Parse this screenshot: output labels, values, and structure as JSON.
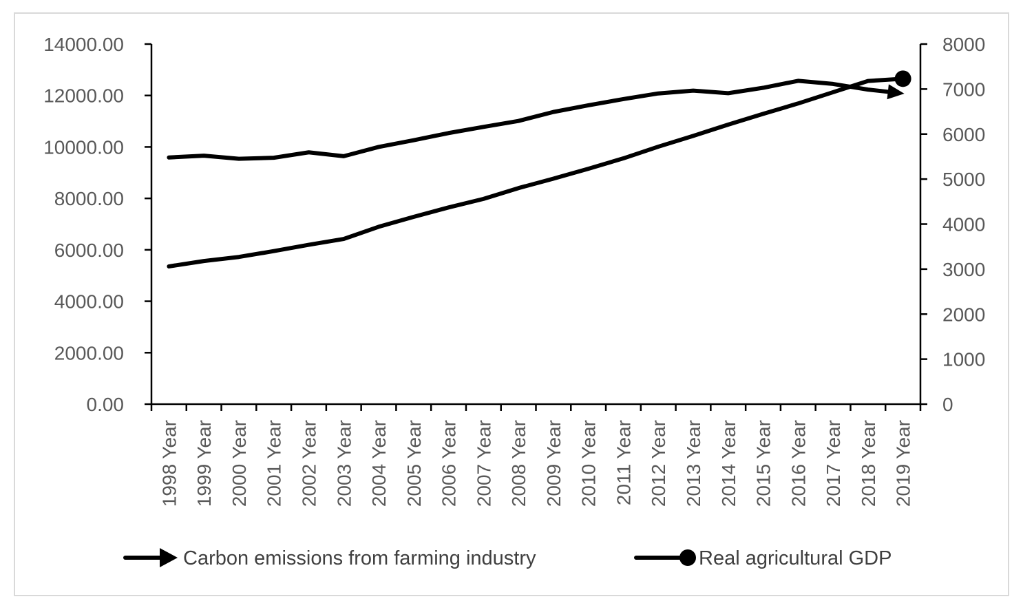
{
  "chart_data": {
    "type": "line",
    "title": "",
    "categories": [
      "1998 Year",
      "1999 Year",
      "2000 Year",
      "2001 Year",
      "2002 Year",
      "2003 Year",
      "2004 Year",
      "2005 Year",
      "2006 Year",
      "2007 Year",
      "2008 Year",
      "2009 Year",
      "2010 Year",
      "2011 Year",
      "2012 Year",
      "2013 Year",
      "2014 Year",
      "2015 Year",
      "2016 Year",
      "2017 Year",
      "2018 Year",
      "2019 Year"
    ],
    "y_left": {
      "min": 0,
      "max": 14000,
      "step": 2000,
      "ticks": [
        "0.00",
        "2000.00",
        "4000.00",
        "6000.00",
        "8000.00",
        "10000.00",
        "12000.00",
        "14000.00"
      ]
    },
    "y_right": {
      "min": 0,
      "max": 8000,
      "step": 1000,
      "ticks": [
        "0",
        "1000",
        "2000",
        "3000",
        "4000",
        "5000",
        "6000",
        "7000",
        "8000"
      ]
    },
    "series": [
      {
        "name": "Carbon emissions from farming industry",
        "axis": "left",
        "marker": "arrow",
        "values": [
          9590,
          9660,
          9540,
          9580,
          9790,
          9640,
          10000,
          10260,
          10540,
          10780,
          11010,
          11360,
          11620,
          11860,
          12080,
          12190,
          12090,
          12300,
          12570,
          12450,
          12230,
          12080
        ]
      },
      {
        "name": "Real agricultural GDP",
        "axis": "right",
        "marker": "circle",
        "values": [
          3060,
          3180,
          3270,
          3400,
          3540,
          3670,
          3940,
          4160,
          4370,
          4560,
          4800,
          5010,
          5230,
          5460,
          5720,
          5960,
          6210,
          6450,
          6680,
          6930,
          7180,
          7230
        ]
      }
    ],
    "legend": {
      "position": "bottom",
      "entries": [
        "Carbon emissions from farming industry",
        "Real agricultural GDP"
      ]
    },
    "colors": {
      "line": "#000000",
      "axis": "#000000",
      "tick_text": "#595959",
      "legend_text": "#404040",
      "frame": "#d9d9d9"
    }
  }
}
